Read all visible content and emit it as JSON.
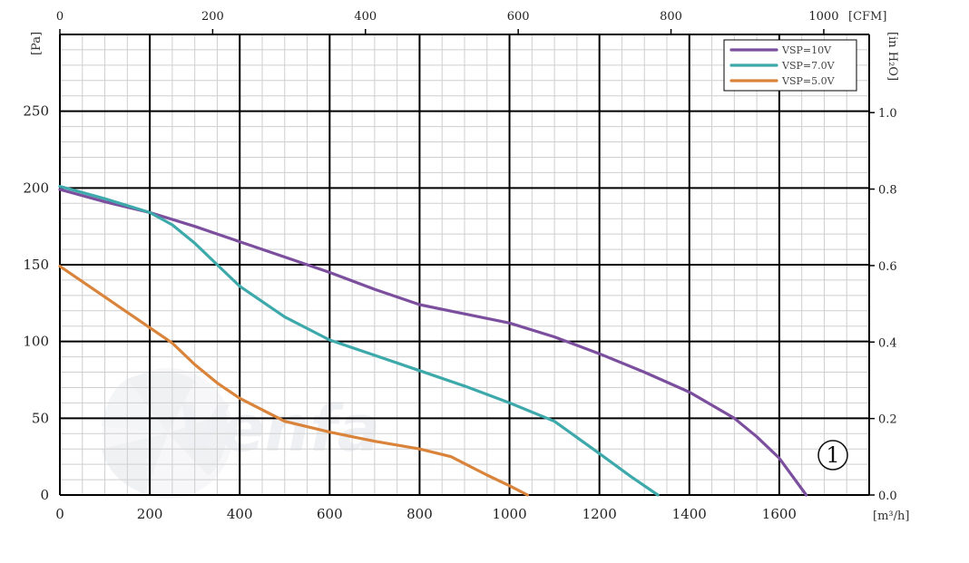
{
  "chart_data": {
    "type": "line",
    "x_unit_label": "[m³/h]",
    "y_unit_label": "[Pa]",
    "top_axis_unit_label": "[CFM]",
    "right_axis_unit_label": "[in H₂O]",
    "x_ticks": [
      "0",
      "200",
      "400",
      "600",
      "800",
      "1000",
      "1200",
      "1400",
      "1600"
    ],
    "x_tick_values": [
      0,
      200,
      400,
      600,
      800,
      1000,
      1200,
      1400,
      1600
    ],
    "y_ticks": [
      "0",
      "50",
      "100",
      "150",
      "200",
      "250"
    ],
    "y_tick_values": [
      0,
      50,
      100,
      150,
      200,
      250
    ],
    "top_ticks": [
      "0",
      "200",
      "400",
      "600",
      "800",
      "1000"
    ],
    "top_tick_values": [
      0,
      200,
      400,
      600,
      800,
      1000
    ],
    "right_ticks": [
      "0.0",
      "0.2",
      "0.4",
      "0.6",
      "0.8",
      "1.0"
    ],
    "right_tick_values": [
      0.0,
      0.2,
      0.4,
      0.6,
      0.8,
      1.0
    ],
    "xlim": [
      0,
      1800
    ],
    "ylim": [
      0,
      300
    ],
    "grid": true,
    "legend_position": "top-right",
    "series": [
      {
        "name": "VSP=10V",
        "color": "#7b4f9e",
        "x": [
          0,
          100,
          200,
          300,
          400,
          500,
          600,
          700,
          800,
          900,
          1000,
          1100,
          1200,
          1300,
          1400,
          1500,
          1550,
          1600,
          1660
        ],
        "y": [
          199,
          191,
          184,
          175,
          165,
          155,
          145,
          134,
          124,
          118,
          112,
          103,
          92,
          80,
          67,
          50,
          38,
          24,
          0
        ]
      },
      {
        "name": "VSP=7.0V",
        "color": "#3da9ab",
        "x": [
          0,
          100,
          200,
          250,
          300,
          350,
          400,
          500,
          600,
          700,
          800,
          900,
          1000,
          1100,
          1200,
          1270,
          1330
        ],
        "y": [
          201,
          193,
          184,
          176,
          164,
          150,
          136,
          116,
          101,
          91,
          81,
          71,
          60,
          48,
          27,
          12,
          0
        ]
      },
      {
        "name": "VSP=5.0V",
        "color": "#d9843a",
        "x": [
          0,
          100,
          200,
          250,
          300,
          350,
          400,
          500,
          600,
          700,
          800,
          870,
          950,
          1000,
          1040
        ],
        "y": [
          149,
          129,
          109,
          99,
          85,
          73,
          63,
          48,
          41,
          35,
          30,
          25,
          13,
          6,
          0
        ]
      }
    ],
    "annotations": [
      "1"
    ]
  },
  "watermark_text": "Venfa"
}
